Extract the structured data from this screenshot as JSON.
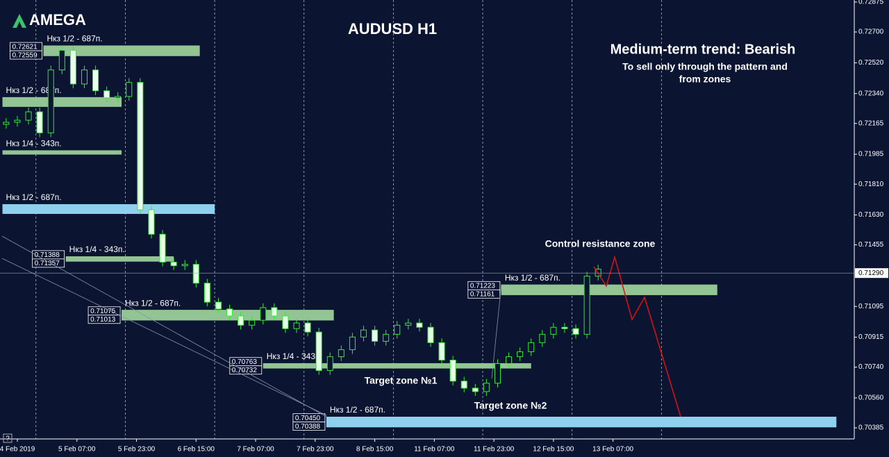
{
  "logo": "AMEGA",
  "help": "?",
  "chart_data": {
    "type": "candlestick",
    "title": "AUDUSD H1",
    "annotations": {
      "trend": "Medium-term trend: Bearish",
      "advice_line1": "To sell only through the pattern and",
      "advice_line2": "from zones",
      "resistance": "Control resistance zone",
      "target1": "Target zone №1",
      "target2": "Target zone №2"
    },
    "x": [
      -3,
      0,
      3,
      6,
      9,
      12,
      15,
      18,
      21,
      24,
      27,
      30,
      33,
      36,
      39,
      42,
      45,
      48,
      51,
      54,
      57,
      60,
      63,
      66,
      69,
      72,
      75,
      78,
      81,
      84,
      87,
      90,
      93,
      96,
      99,
      102,
      105,
      108,
      111,
      114,
      117,
      120,
      123,
      126,
      129,
      132,
      135,
      138,
      141,
      144,
      147,
      150,
      153,
      156
    ],
    "open": [
      0.7216,
      0.72172,
      0.72184,
      0.72233,
      0.7211,
      0.72478,
      0.72593,
      0.72396,
      0.72478,
      0.72356,
      0.72315,
      0.72323,
      0.72405,
      0.7166,
      0.71517,
      0.71354,
      0.71333,
      0.71341,
      0.71231,
      0.7112,
      0.7108,
      0.71039,
      0.70985,
      0.71014,
      0.71088,
      0.71039,
      0.70965,
      0.70998,
      0.70945,
      0.7072,
      0.70801,
      0.70842,
      0.70916,
      0.70957,
      0.70891,
      0.70932,
      0.70985,
      0.70998,
      0.70973,
      0.70883,
      0.70781,
      0.70658,
      0.70617,
      0.70597,
      0.70646,
      0.70761,
      0.70801,
      0.7083,
      0.70883,
      0.70932,
      0.70973,
      0.70965,
      0.70932,
      0.71272
    ],
    "high": [
      0.72197,
      0.72209,
      0.72258,
      0.72258,
      0.72503,
      0.72618,
      0.72618,
      0.72503,
      0.72503,
      0.72381,
      0.72348,
      0.7243,
      0.7243,
      0.71685,
      0.71542,
      0.71379,
      0.71366,
      0.71366,
      0.71256,
      0.71145,
      0.71105,
      0.71064,
      0.71039,
      0.71113,
      0.71113,
      0.71064,
      0.71023,
      0.71023,
      0.7097,
      0.70826,
      0.70867,
      0.70941,
      0.70982,
      0.70982,
      0.70957,
      0.7101,
      0.71023,
      0.71023,
      0.70998,
      0.70908,
      0.70806,
      0.70683,
      0.70642,
      0.70671,
      0.70786,
      0.70826,
      0.70855,
      0.70908,
      0.70957,
      0.70998,
      0.70998,
      0.7099,
      0.71297,
      0.71338
    ],
    "low": [
      0.72135,
      0.72147,
      0.72159,
      0.72085,
      0.72085,
      0.72453,
      0.72371,
      0.72371,
      0.72331,
      0.7229,
      0.7229,
      0.72298,
      0.71635,
      0.71492,
      0.71329,
      0.71308,
      0.71308,
      0.71206,
      0.71095,
      0.71055,
      0.71014,
      0.7096,
      0.7096,
      0.70989,
      0.71014,
      0.7094,
      0.7094,
      0.7092,
      0.70695,
      0.70695,
      0.70776,
      0.70817,
      0.70891,
      0.70866,
      0.70866,
      0.70907,
      0.7096,
      0.70948,
      0.70858,
      0.70756,
      0.70633,
      0.70592,
      0.70572,
      0.70572,
      0.70621,
      0.70736,
      0.70776,
      0.70805,
      0.70858,
      0.70907,
      0.7094,
      0.70907,
      0.70907,
      0.71247
    ],
    "close": [
      0.72172,
      0.72184,
      0.72233,
      0.7211,
      0.72478,
      0.72593,
      0.72396,
      0.72478,
      0.72356,
      0.72315,
      0.72323,
      0.72405,
      0.7166,
      0.71517,
      0.71354,
      0.71333,
      0.71341,
      0.71231,
      0.7112,
      0.7108,
      0.71039,
      0.70985,
      0.71014,
      0.71088,
      0.71039,
      0.70965,
      0.70998,
      0.70945,
      0.7072,
      0.70801,
      0.70842,
      0.70916,
      0.70957,
      0.70891,
      0.70932,
      0.70985,
      0.70998,
      0.70973,
      0.70883,
      0.70781,
      0.70658,
      0.70617,
      0.70597,
      0.70646,
      0.70761,
      0.70801,
      0.7083,
      0.70883,
      0.70932,
      0.70973,
      0.70965,
      0.70932,
      0.71272,
      0.71313
    ],
    "up_color": "#39e639",
    "down_color": "#e8ffe8",
    "xlim": [
      -4.66,
      224.8
    ],
    "xticks": [
      {
        "value": 0,
        "label": "4 Feb 2019"
      },
      {
        "value": 16,
        "label": "5 Feb 07:00"
      },
      {
        "value": 32,
        "label": "5 Feb 23:00"
      },
      {
        "value": 48,
        "label": "6 Feb 15:00"
      },
      {
        "value": 64,
        "label": "7 Feb 07:00"
      },
      {
        "value": 80,
        "label": "7 Feb 23:00"
      },
      {
        "value": 96,
        "label": "8 Feb 15:00"
      },
      {
        "value": 112,
        "label": "11 Feb 07:00"
      },
      {
        "value": 128,
        "label": "11 Feb 23:00"
      },
      {
        "value": 144,
        "label": "12 Feb 15:00"
      },
      {
        "value": 160,
        "label": "13 Feb 07:00"
      }
    ],
    "xgrid": [
      5,
      29,
      53,
      77,
      101,
      125,
      149,
      173
    ],
    "ylim": [
      0.7032,
      0.72887
    ],
    "yticks": [
      0.72875,
      {
        "value": 0.727,
        "label": "0.72700"
      },
      {
        "value": 0.7252,
        "label": "0.72520"
      },
      {
        "value": 0.7234,
        "label": "0.72340"
      },
      0.72165,
      0.71985,
      {
        "value": 0.7181,
        "label": "0.71810"
      },
      {
        "value": 0.7163,
        "label": "0.71630"
      },
      0.71455,
      0.71095,
      0.70915,
      {
        "value": 0.7074,
        "label": "0.70740"
      },
      {
        "value": 0.7056,
        "label": "0.70560"
      },
      0.70385
    ],
    "last_price": {
      "value": 0.7129,
      "label": "0.71290"
    },
    "zones": [
      {
        "label": "Нкз 1/2 - 687п.",
        "start": 7,
        "end": 49,
        "high": 0.72621,
        "low": 0.72559,
        "price_labels": [
          "0.72621",
          "0.72559"
        ],
        "color": "#93c493"
      },
      {
        "label": "Нкз 1/2 - 687п.",
        "start": -4,
        "end": 28,
        "high": 0.72319,
        "low": 0.72262,
        "color": "#93c493"
      },
      {
        "label": "Нкз 1/4 - 343п.",
        "start": -4,
        "end": 28,
        "high": 0.72008,
        "low": 0.71983,
        "color": "#93c493"
      },
      {
        "label": "Нкз 1/2 - 687п.",
        "start": -4,
        "end": 53,
        "high": 0.71693,
        "low": 0.71636,
        "color": "#8fd0ee"
      },
      {
        "label": "Нкз 1/4 - 343п.",
        "start": 13,
        "end": 42,
        "high": 0.71388,
        "low": 0.71357,
        "price_labels": [
          "0.71388",
          "0.71357"
        ],
        "color": "#93c493"
      },
      {
        "label": "Нкз 1/2 - 687п.",
        "start": 28,
        "end": 85,
        "high": 0.71075,
        "low": 0.71013,
        "price_labels": [
          "0.71075",
          "0.71013"
        ],
        "color": "#93c493"
      },
      {
        "label": "Нкз 1/4 - 343п.",
        "start": 66,
        "end": 138,
        "high": 0.70763,
        "low": 0.70732,
        "price_labels": [
          "0.70763",
          "0.70732"
        ],
        "color": "#93c493"
      },
      {
        "label": "Нкз 1/2 - 687п.",
        "start": 83,
        "end": 220,
        "high": 0.7045,
        "low": 0.70388,
        "price_labels": [
          "0.70450",
          "0.70388"
        ],
        "color": "#8fd0ee"
      },
      {
        "label": "Нкз 1/2 - 687п.",
        "start": 130,
        "end": 188,
        "high": 0.71223,
        "low": 0.71161,
        "price_labels": [
          "0.71223",
          "0.71161"
        ],
        "color": "#93c493"
      }
    ]
  }
}
